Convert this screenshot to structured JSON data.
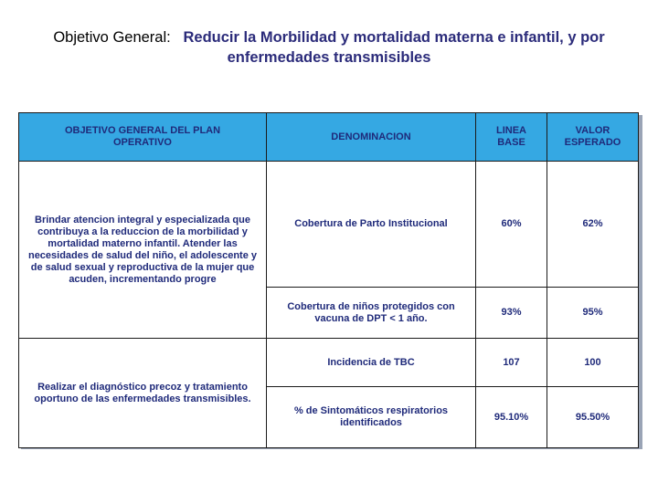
{
  "heading": {
    "label": "Objetivo General:",
    "text_line1": "Reducir la Morbilidad y mortalidad materna e infantil, y por",
    "text_line2": "enfermedades transmisibles"
  },
  "table": {
    "headers": {
      "objetivo": "OBJETIVO GENERAL DEL PLAN OPERATIVO",
      "denominacion": "DENOMINACION",
      "linea_base": "LINEA BASE",
      "valor_esperado": "VALOR ESPERADO"
    },
    "groups": [
      {
        "objetivo": "Brindar atencion integral y especializada que contribuya a la reduccion de la morbilidad y mortalidad materno infantil. Atender las necesidades de salud del niño, el adolescente y de salud sexual y reproductiva de la mujer que acuden, incrementando progre",
        "rows": [
          {
            "denominacion": "Cobertura de Parto Institucional",
            "linea_base": "60%",
            "valor_esperado": "62%"
          },
          {
            "denominacion": "Cobertura de niños protegidos  con vacuna de DPT < 1 año.",
            "linea_base": "93%",
            "valor_esperado": "95%"
          }
        ]
      },
      {
        "objetivo": "Realizar el diagnóstico precoz y tratamiento oportuno de las enfermedades transmisibles.",
        "rows": [
          {
            "denominacion": "Incidencia de TBC",
            "linea_base": "107",
            "valor_esperado": "100"
          },
          {
            "denominacion": "% de Sintomáticos respiratorios identificados",
            "linea_base": "95.10%",
            "valor_esperado": "95.50%"
          }
        ]
      }
    ]
  }
}
